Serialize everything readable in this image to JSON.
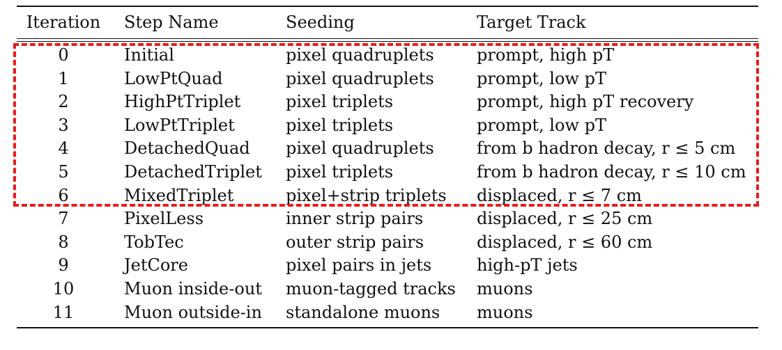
{
  "table": {
    "headers": [
      "Iteration",
      "Step Name",
      "Seeding",
      "Target Track"
    ],
    "rows": [
      {
        "iteration": "0",
        "step": "Initial",
        "seeding": "pixel quadruplets",
        "target": "prompt, high pT"
      },
      {
        "iteration": "1",
        "step": "LowPtQuad",
        "seeding": "pixel quadruplets",
        "target": "prompt, low pT"
      },
      {
        "iteration": "2",
        "step": "HighPtTriplet",
        "seeding": "pixel triplets",
        "target": "prompt, high pT recovery"
      },
      {
        "iteration": "3",
        "step": "LowPtTriplet",
        "seeding": "pixel triplets",
        "target": "prompt, low pT"
      },
      {
        "iteration": "4",
        "step": "DetachedQuad",
        "seeding": "pixel quadruplets",
        "target": "from b hadron decay, r ≤ 5 cm"
      },
      {
        "iteration": "5",
        "step": "DetachedTriplet",
        "seeding": "pixel triplets",
        "target": "from b hadron decay, r ≤ 10 cm"
      },
      {
        "iteration": "6",
        "step": "MixedTriplet",
        "seeding": "pixel+strip triplets",
        "target": "displaced, r ≤ 7 cm"
      },
      {
        "iteration": "7",
        "step": "PixelLess",
        "seeding": "inner strip pairs",
        "target": "displaced, r ≤ 25 cm"
      },
      {
        "iteration": "8",
        "step": "TobTec",
        "seeding": "outer strip pairs",
        "target": "displaced, r ≤ 60 cm"
      },
      {
        "iteration": "9",
        "step": "JetCore",
        "seeding": "pixel pairs in jets",
        "target": "high-pT jets"
      },
      {
        "iteration": "10",
        "step": "Muon inside-out",
        "seeding": "muon-tagged tracks",
        "target": "muons"
      },
      {
        "iteration": "11",
        "step": "Muon outside-in",
        "seeding": "standalone muons",
        "target": "muons"
      }
    ]
  },
  "colors": {
    "highlight": "#ea1b1b",
    "text": "#111111"
  }
}
